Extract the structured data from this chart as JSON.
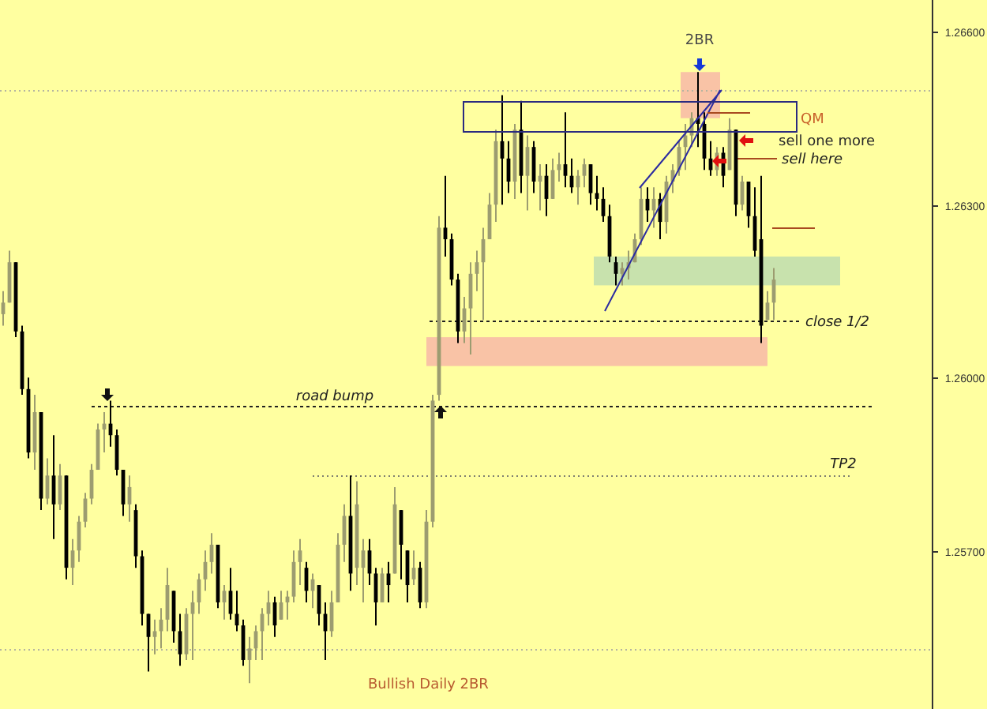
{
  "chart_data": {
    "type": "candlestick",
    "categories": [
      null,
      null,
      null,
      null,
      null,
      null,
      null,
      null,
      null,
      null,
      null,
      null,
      null,
      null,
      null,
      null,
      null,
      null,
      null,
      null,
      null,
      null,
      null,
      null,
      null,
      null,
      null,
      null,
      null,
      null,
      null,
      null,
      null,
      null,
      null,
      null,
      null,
      null,
      null,
      null,
      null,
      null,
      null,
      null,
      null,
      null,
      null,
      null,
      null,
      null,
      null,
      null,
      null,
      null,
      null,
      null,
      null,
      null,
      null,
      null,
      null,
      null,
      null,
      null,
      null,
      null,
      null,
      null,
      null,
      null,
      null,
      null,
      null,
      null,
      null,
      null,
      null,
      null,
      null,
      null,
      null,
      null,
      null,
      null,
      null,
      null,
      null,
      null,
      null,
      null,
      null,
      null,
      null,
      null,
      null,
      null,
      null,
      null,
      null,
      null,
      null,
      null,
      null,
      null,
      null,
      null,
      null,
      null,
      null,
      null,
      null,
      null,
      null,
      null,
      null,
      null,
      null,
      null,
      null,
      null,
      null,
      null,
      null,
      null,
      null,
      null,
      null,
      null,
      null,
      null,
      null,
      null,
      null,
      null,
      null,
      null,
      null,
      null,
      null,
      null,
      null,
      null,
      null,
      null,
      null,
      null,
      null
    ],
    "ohlc": [
      [
        1.2611,
        1.2615,
        1.2609,
        1.2613
      ],
      [
        1.2613,
        1.2622,
        1.2613,
        1.262
      ],
      [
        1.262,
        1.262,
        1.2607,
        1.2608
      ],
      [
        1.2608,
        1.2609,
        1.2597,
        1.2598
      ],
      [
        1.2598,
        1.26,
        1.2586,
        1.2587
      ],
      [
        1.2587,
        1.2597,
        1.2584,
        1.2594
      ],
      [
        1.2594,
        1.2594,
        1.2577,
        1.2579
      ],
      [
        1.2579,
        1.2586,
        1.2578,
        1.2583
      ],
      [
        1.2583,
        1.259,
        1.2572,
        1.2578
      ],
      [
        1.2578,
        1.2585,
        1.2577,
        1.2583
      ],
      [
        1.2583,
        1.2583,
        1.2565,
        1.2567
      ],
      [
        1.2567,
        1.2572,
        1.2564,
        1.257
      ],
      [
        1.257,
        1.2576,
        1.2568,
        1.2575
      ],
      [
        1.2575,
        1.258,
        1.2574,
        1.2579
      ],
      [
        1.2579,
        1.2585,
        1.2578,
        1.2584
      ],
      [
        1.2584,
        1.2592,
        1.2584,
        1.2591
      ],
      [
        1.2591,
        1.2594,
        1.2587,
        1.2592
      ],
      [
        1.2592,
        1.2596,
        1.2588,
        1.259
      ],
      [
        1.259,
        1.2591,
        1.2583,
        1.2584
      ],
      [
        1.2584,
        1.2584,
        1.2576,
        1.2578
      ],
      [
        1.2578,
        1.2583,
        1.2575,
        1.2581
      ],
      [
        1.2577,
        1.2578,
        1.2567,
        1.2569
      ],
      [
        1.2569,
        1.257,
        1.2557,
        1.2559
      ],
      [
        1.2559,
        1.2559,
        1.2549,
        1.2555
      ],
      [
        1.2555,
        1.2558,
        1.2552,
        1.2556
      ],
      [
        1.2556,
        1.256,
        1.2553,
        1.2558
      ],
      [
        1.2558,
        1.2567,
        1.2556,
        1.2564
      ],
      [
        1.2563,
        1.2563,
        1.2554,
        1.2556
      ],
      [
        1.2556,
        1.2559,
        1.255,
        1.2552
      ],
      [
        1.2552,
        1.256,
        1.2551,
        1.2559
      ],
      [
        1.2559,
        1.2563,
        1.2551,
        1.2561
      ],
      [
        1.2561,
        1.2566,
        1.2559,
        1.2565
      ],
      [
        1.2565,
        1.257,
        1.2563,
        1.2568
      ],
      [
        1.2568,
        1.2573,
        1.2566,
        1.2571
      ],
      [
        1.2571,
        1.2571,
        1.256,
        1.2561
      ],
      [
        1.2561,
        1.2564,
        1.2558,
        1.2563
      ],
      [
        1.2563,
        1.2567,
        1.2558,
        1.2559
      ],
      [
        1.2559,
        1.2563,
        1.2556,
        1.2557
      ],
      [
        1.2557,
        1.2558,
        1.255,
        1.2551
      ],
      [
        1.2551,
        1.2555,
        1.2547,
        1.2553
      ],
      [
        1.2553,
        1.2557,
        1.2551,
        1.2556
      ],
      [
        1.2556,
        1.256,
        1.2551,
        1.2559
      ],
      [
        1.2559,
        1.2563,
        1.2557,
        1.2561
      ],
      [
        1.2561,
        1.2562,
        1.2555,
        1.2557
      ],
      [
        1.2558,
        1.2563,
        1.2558,
        1.2561
      ],
      [
        1.2561,
        1.2563,
        1.2558,
        1.2562
      ],
      [
        1.2562,
        1.257,
        1.2561,
        1.2568
      ],
      [
        1.2568,
        1.2572,
        1.2564,
        1.257
      ],
      [
        1.2567,
        1.2568,
        1.2561,
        1.2563
      ],
      [
        1.2563,
        1.2566,
        1.256,
        1.2565
      ],
      [
        1.2564,
        1.2564,
        1.2557,
        1.2559
      ],
      [
        1.2559,
        1.2561,
        1.2551,
        1.2556
      ],
      [
        1.2556,
        1.2563,
        1.2555,
        1.2561
      ],
      [
        1.2561,
        1.2573,
        1.2561,
        1.2571
      ],
      [
        1.2571,
        1.2578,
        1.2568,
        1.2576
      ],
      [
        1.2576,
        1.2583,
        1.2563,
        1.2566
      ],
      [
        1.2567,
        1.2582,
        1.2564,
        1.2578
      ],
      [
        1.2567,
        1.2572,
        1.2561,
        1.257
      ],
      [
        1.257,
        1.2572,
        1.2564,
        1.2566
      ],
      [
        1.2566,
        1.2567,
        1.2557,
        1.2561
      ],
      [
        1.2561,
        1.2567,
        1.2561,
        1.2566
      ],
      [
        1.2566,
        1.2568,
        1.2561,
        1.2564
      ],
      [
        1.2566,
        1.2581,
        1.2566,
        1.2578
      ],
      [
        1.2577,
        1.2577,
        1.2565,
        1.2571
      ],
      [
        1.257,
        1.257,
        1.2561,
        1.2564
      ],
      [
        1.2565,
        1.257,
        1.2564,
        1.2567
      ],
      [
        1.2567,
        1.2568,
        1.256,
        1.2561
      ],
      [
        1.2561,
        1.2577,
        1.256,
        1.2575
      ],
      [
        1.2575,
        1.2597,
        1.2574,
        1.2596
      ],
      [
        1.2597,
        1.2628,
        1.2596,
        1.2626
      ],
      [
        1.2626,
        1.2635,
        1.2621,
        1.2624
      ],
      [
        1.2624,
        1.2625,
        1.2616,
        1.2617
      ],
      [
        1.2617,
        1.2618,
        1.2606,
        1.2608
      ],
      [
        1.2608,
        1.2614,
        1.2606,
        1.2612
      ],
      [
        1.2612,
        1.262,
        1.2604,
        1.2618
      ],
      [
        1.2618,
        1.2622,
        1.2615,
        1.262
      ],
      [
        1.262,
        1.2626,
        1.261,
        1.2624
      ],
      [
        1.2624,
        1.2632,
        1.2624,
        1.263
      ],
      [
        1.263,
        1.2643,
        1.2627,
        1.2641
      ],
      [
        1.2641,
        1.2649,
        1.263,
        1.2638
      ],
      [
        1.2638,
        1.2641,
        1.2632,
        1.2634
      ],
      [
        1.2634,
        1.2644,
        1.2631,
        1.2643
      ],
      [
        1.2643,
        1.2648,
        1.2632,
        1.2635
      ],
      [
        1.2635,
        1.2642,
        1.2629,
        1.264
      ],
      [
        1.264,
        1.2641,
        1.2632,
        1.2634
      ],
      [
        1.2634,
        1.2637,
        1.2629,
        1.2635
      ],
      [
        1.2635,
        1.2637,
        1.2628,
        1.2631
      ],
      [
        1.2631,
        1.2638,
        1.2631,
        1.2636
      ],
      [
        1.2636,
        1.2639,
        1.2634,
        1.2637
      ],
      [
        1.2637,
        1.2646,
        1.2633,
        1.2635
      ],
      [
        1.2635,
        1.2638,
        1.2632,
        1.2633
      ],
      [
        1.2633,
        1.2636,
        1.263,
        1.2635
      ],
      [
        1.2635,
        1.2638,
        1.2633,
        1.2637
      ],
      [
        1.2637,
        1.2637,
        1.263,
        1.2632
      ],
      [
        1.2632,
        1.2635,
        1.2629,
        1.2631
      ],
      [
        1.2631,
        1.2633,
        1.2627,
        1.2628
      ],
      [
        1.2628,
        1.263,
        1.262,
        1.2621
      ],
      [
        1.262,
        1.2621,
        1.2616,
        1.2618
      ],
      [
        1.2618,
        1.262,
        1.2616,
        1.2619
      ],
      [
        1.2619,
        1.2622,
        1.2617,
        1.262
      ],
      [
        1.262,
        1.2625,
        1.262,
        1.2624
      ],
      [
        1.2624,
        1.2633,
        1.2623,
        1.2631
      ],
      [
        1.2631,
        1.2633,
        1.2627,
        1.2629
      ],
      [
        1.2629,
        1.2633,
        1.2626,
        1.2631
      ],
      [
        1.2631,
        1.2632,
        1.2624,
        1.2627
      ],
      [
        1.2627,
        1.2635,
        1.2625,
        1.2634
      ],
      [
        1.2634,
        1.2637,
        1.2632,
        1.2636
      ],
      [
        1.2636,
        1.2641,
        1.2635,
        1.264
      ],
      [
        1.264,
        1.2644,
        1.2636,
        1.2642
      ],
      [
        1.2642,
        1.2646,
        1.264,
        1.2645
      ],
      [
        1.2645,
        1.2653,
        1.264,
        1.2644
      ],
      [
        1.2644,
        1.2646,
        1.2636,
        1.2638
      ],
      [
        1.2638,
        1.2641,
        1.2635,
        1.2636
      ],
      [
        1.2636,
        1.264,
        1.2635,
        1.2639
      ],
      [
        1.2639,
        1.264,
        1.2633,
        1.2635
      ],
      [
        1.2636,
        1.2645,
        1.2636,
        1.2643
      ],
      [
        1.2643,
        1.2643,
        1.2628,
        1.263
      ],
      [
        1.263,
        1.2635,
        1.2629,
        1.2634
      ],
      [
        1.2634,
        1.2634,
        1.2626,
        1.2628
      ],
      [
        1.2628,
        1.2633,
        1.2621,
        1.2622
      ],
      [
        1.2624,
        1.2635,
        1.2606,
        1.2609
      ],
      [
        1.261,
        1.2615,
        1.261,
        1.2613
      ],
      [
        1.2613,
        1.2619,
        1.261,
        1.2617
      ],
      null,
      null,
      null,
      null,
      null,
      null,
      null,
      null,
      null,
      null,
      null,
      null,
      null,
      null,
      null,
      null,
      null,
      null,
      null,
      null,
      null,
      null,
      null,
      null
    ],
    "colors": [
      "#9c9c70",
      "#9c9c70",
      "#000000",
      "#000000",
      "#000000",
      "#9c9c70",
      "#000000",
      "#9c9c70",
      "#000000",
      "#9c9c70",
      "#000000",
      "#9c9c70",
      "#9c9c70",
      "#9c9c70",
      "#9c9c70",
      "#9c9c70",
      "#9c9c70",
      "#000000",
      "#000000",
      "#000000",
      "#9c9c70",
      "#000000",
      "#000000",
      "#000000",
      "#9c9c70",
      "#9c9c70",
      "#9c9c70",
      "#000000",
      "#000000",
      "#9c9c70",
      "#9c9c70",
      "#9c9c70",
      "#9c9c70",
      "#9c9c70",
      "#000000",
      "#9c9c70",
      "#000000",
      "#000000",
      "#000000",
      "#9c9c70",
      "#9c9c70",
      "#9c9c70",
      "#9c9c70",
      "#000000",
      "#9c9c70",
      "#9c9c70",
      "#9c9c70",
      "#9c9c70",
      "#000000",
      "#9c9c70",
      "#000000",
      "#000000",
      "#9c9c70",
      "#9c9c70",
      "#9c9c70",
      "#000000",
      "#9c9c70",
      "#9c9c70",
      "#000000",
      "#000000",
      "#9c9c70",
      "#000000",
      "#9c9c70",
      "#000000",
      "#000000",
      "#9c9c70",
      "#000000",
      "#9c9c70",
      "#9c9c70",
      "#9c9c70",
      "#000000",
      "#000000",
      "#000000",
      "#9c9c70",
      "#9c9c70",
      "#9c9c70",
      "#9c9c70",
      "#9c9c70",
      "#9c9c70",
      "#000000",
      "#000000",
      "#9c9c70",
      "#000000",
      "#9c9c70",
      "#000000",
      "#9c9c70",
      "#000000",
      "#9c9c70",
      "#9c9c70",
      "#000000",
      "#000000",
      "#9c9c70",
      "#9c9c70",
      "#000000",
      "#000000",
      "#000000",
      "#000000",
      "#000000",
      "#9c9c70",
      "#9c9c70",
      "#9c9c70",
      "#9c9c70",
      "#000000",
      "#9c9c70",
      "#000000",
      "#9c9c70",
      "#9c9c70",
      "#9c9c70",
      "#9c9c70",
      "#9c9c70",
      "#000000",
      "#000000",
      "#000000",
      "#9c9c70",
      "#000000",
      "#9c9c70",
      "#000000",
      "#9c9c70",
      "#000000",
      "#000000",
      "#000000",
      "#9c9c70",
      "#9c9c70",
      null,
      null,
      null,
      null,
      null,
      null,
      null,
      null,
      null,
      null,
      null,
      null,
      null,
      null,
      null,
      null,
      null,
      null,
      null,
      null,
      null,
      null,
      null,
      null
    ],
    "ylim": [
      1.25425,
      1.26655
    ],
    "yticks": [
      {
        "value": 1.257,
        "label": "1.25700"
      },
      {
        "value": 1.26,
        "label": "1.26000"
      },
      {
        "value": 1.263,
        "label": "1.26300"
      },
      {
        "value": 1.266,
        "label": "1.26600"
      }
    ],
    "tick_labels": "y",
    "ref_lines": [
      {
        "axis": "y",
        "value": 1.265,
        "color": "#b4b4a0",
        "line_style": "dotted"
      },
      {
        "axis": "y",
        "value": 1.2553,
        "color": "#b4b4a0",
        "line_style": "dotted"
      },
      {
        "axis": "y",
        "value": 1.261,
        "label": "close 1/2",
        "color": "#202020",
        "line_style": "dashed"
      },
      {
        "axis": "y",
        "value": 1.2595,
        "label": "road bump",
        "color": "#202020",
        "line_style": "dashed"
      },
      {
        "axis": "y",
        "value": 1.2583,
        "label": "TP2",
        "color": "#808070",
        "line_style": "dotted"
      },
      {
        "axis": "y",
        "value": 1.2638,
        "label": "sell here",
        "color": "#a84a20",
        "line_style": "solid"
      }
    ],
    "bands": [
      {
        "axis": "y",
        "from": 1.2645,
        "to": 1.2653,
        "color": "#f9c3a6"
      },
      {
        "axis": "y",
        "from": 1.2616,
        "to": 1.2621,
        "color": "#c8e2ad"
      },
      {
        "axis": "y",
        "from": 1.2602,
        "to": 1.2607,
        "color": "#f9c3a6"
      }
    ],
    "annotations": [
      "2BR",
      "QM",
      "sell one more",
      "Bullish Daily 2BR"
    ]
  }
}
